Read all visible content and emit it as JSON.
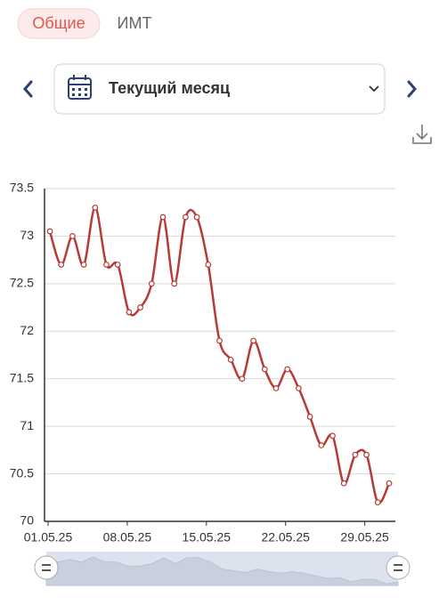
{
  "tabs": [
    "Общие",
    "ИМТ"
  ],
  "period": "Текущий месяц",
  "chart_data": {
    "type": "line",
    "categories": [
      "01.05.25",
      null,
      null,
      null,
      null,
      null,
      null,
      "08.05.25",
      null,
      null,
      null,
      null,
      null,
      null,
      "15.05.25",
      null,
      null,
      null,
      null,
      null,
      null,
      "22.05.25",
      null,
      null,
      null,
      null,
      null,
      null,
      "29.05.25",
      null,
      null
    ],
    "series": [
      {
        "color": "#b83a36",
        "values": [
          73.05,
          72.7,
          73.0,
          72.7,
          73.3,
          72.7,
          72.7,
          72.2,
          72.25,
          72.5,
          73.2,
          72.5,
          73.2,
          73.2,
          72.7,
          71.9,
          71.7,
          71.5,
          71.9,
          71.6,
          71.4,
          71.6,
          71.4,
          71.1,
          70.8,
          70.9,
          70.4,
          70.7,
          70.7,
          70.2,
          70.4
        ]
      }
    ],
    "ylim": [
      70,
      73.5
    ],
    "yticks": [
      70,
      70.5,
      71,
      71.5,
      72,
      72.5,
      73,
      73.5
    ],
    "grid": true
  }
}
